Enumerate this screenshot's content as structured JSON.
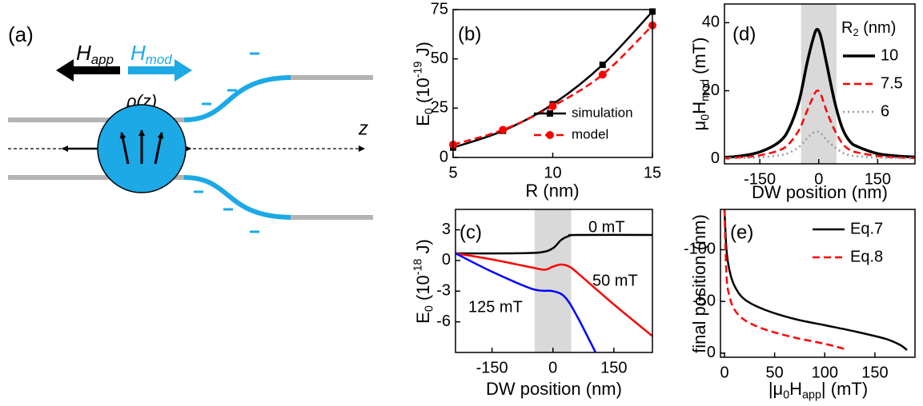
{
  "diagram": {
    "label": "(a)",
    "h_app": [
      {
        "text": "H"
      },
      {
        "text": "app",
        "shift": "sub"
      }
    ],
    "h_mod": [
      {
        "text": "H"
      },
      {
        "text": "mod",
        "shift": "sub"
      }
    ],
    "rho": "ρ(z)",
    "z": "z"
  },
  "chart_data": [
    {
      "type": "line",
      "panel": "(b)",
      "xlabel": "R (nm)",
      "ylabel": [
        {
          "text": "E"
        },
        {
          "text": "0",
          "shift": "sub"
        },
        {
          "text": " (10"
        },
        {
          "text": "-19",
          "shift": "super"
        },
        {
          "text": " J)"
        }
      ],
      "xlim": [
        5,
        15
      ],
      "ylim": [
        0,
        75
      ],
      "xticks": [
        5,
        10,
        15
      ],
      "yticks": [
        0,
        25,
        50,
        75
      ],
      "legend": "lower right",
      "series": [
        {
          "name": "simulation",
          "color": "#000000",
          "style": "solid",
          "marker": "square",
          "x": [
            5,
            7.5,
            10,
            12.5,
            15
          ],
          "values": [
            5,
            13.5,
            27,
            47,
            74
          ]
        },
        {
          "name": "model",
          "color": "#ff0000",
          "style": "dashed",
          "marker": "circle",
          "x": [
            5,
            7.5,
            10,
            12.5,
            15
          ],
          "values": [
            6.5,
            14,
            26,
            42,
            67
          ]
        }
      ]
    },
    {
      "type": "line",
      "panel": "(c)",
      "xlabel": "DW position (nm)",
      "ylabel": [
        {
          "text": "E"
        },
        {
          "text": "0",
          "shift": "sub"
        },
        {
          "text": " (10"
        },
        {
          "text": "-18",
          "shift": "super"
        },
        {
          "text": " J)"
        }
      ],
      "xlim": [
        -240,
        245
      ],
      "ylim": [
        -9,
        5
      ],
      "xticks": [
        -150,
        0,
        150
      ],
      "yticks": [
        3,
        0,
        -3,
        -6
      ],
      "legend": "inline",
      "shaded_region": [
        -45,
        45
      ],
      "series": [
        {
          "name": "0 mT",
          "color": "#000000",
          "style": "solid",
          "x": [
            -240,
            -100,
            -30,
            0,
            20,
            40,
            60,
            245
          ],
          "values": [
            0.7,
            0.7,
            0.8,
            1.2,
            2.0,
            2.4,
            2.5,
            2.5
          ]
        },
        {
          "name": "50 mT",
          "color": "#ff0000",
          "style": "solid",
          "x": [
            -240,
            -150,
            -50,
            -20,
            0,
            20,
            40,
            60,
            150,
            245
          ],
          "values": [
            0.7,
            0.1,
            -0.7,
            -0.9,
            -0.6,
            -0.4,
            -0.6,
            -1.2,
            -4.3,
            -7.4
          ]
        },
        {
          "name": "125 mT",
          "color": "#0000ff",
          "style": "solid",
          "x": [
            -240,
            -150,
            -50,
            0,
            30,
            60,
            105
          ],
          "values": [
            0.7,
            -1.1,
            -2.8,
            -3.0,
            -3.6,
            -5.5,
            -9
          ]
        }
      ]
    },
    {
      "type": "line",
      "panel": "(d)",
      "xlabel": "DW position (nm)",
      "ylabel": [
        {
          "text": "μ"
        },
        {
          "text": "0",
          "shift": "sub"
        },
        {
          "text": "H"
        },
        {
          "text": "mod",
          "shift": "sub"
        },
        {
          "text": " (mT)"
        }
      ],
      "legend_title": [
        {
          "text": "R"
        },
        {
          "text": "2",
          "shift": "sub"
        },
        {
          "text": " (nm)"
        }
      ],
      "xlim": [
        -240,
        245
      ],
      "ylim": [
        -1.5,
        45.5
      ],
      "xticks": [
        -150,
        0,
        150
      ],
      "yticks": [
        0,
        20,
        40
      ],
      "legend": "upper right",
      "shaded_region": [
        -45,
        45
      ],
      "series": [
        {
          "name": "10",
          "color": "#000000",
          "style": "solid",
          "x": [
            -240,
            -200,
            -150,
            -100,
            -75,
            -50,
            -30,
            -15,
            -5,
            5,
            20,
            40,
            60,
            80,
            100,
            150,
            200,
            245
          ],
          "values": [
            0.4,
            0.8,
            2,
            5,
            9,
            17,
            28,
            35,
            38,
            36,
            28,
            17,
            9,
            5,
            3.5,
            1.5,
            0.8,
            0.5
          ]
        },
        {
          "name": "7.5",
          "color": "#ff0000",
          "style": "dashed",
          "x": [
            -240,
            -200,
            -150,
            -100,
            -75,
            -50,
            -30,
            -15,
            -5,
            5,
            20,
            40,
            60,
            80,
            100,
            150,
            200,
            245
          ],
          "values": [
            0.2,
            0.4,
            1,
            2.5,
            4.5,
            8.5,
            14,
            18,
            20,
            19,
            14,
            8.5,
            4.5,
            2.5,
            1.8,
            0.8,
            0.4,
            0.2
          ]
        },
        {
          "name": "6",
          "color": "#999999",
          "style": "dotted",
          "x": [
            -240,
            -200,
            -150,
            -100,
            -75,
            -50,
            -30,
            -15,
            -5,
            5,
            20,
            40,
            60,
            80,
            100,
            150,
            200,
            245
          ],
          "values": [
            0.1,
            0.2,
            0.4,
            1,
            1.8,
            3.5,
            6,
            7.5,
            8,
            7.5,
            5.5,
            3.5,
            1.8,
            1,
            0.7,
            0.3,
            0.2,
            0.1
          ]
        }
      ]
    },
    {
      "type": "line",
      "panel": "(e)",
      "xlabel": [
        {
          "text": "|μ"
        },
        {
          "text": "0",
          "shift": "sub"
        },
        {
          "text": "H"
        },
        {
          "text": "app",
          "shift": "sub"
        },
        {
          "text": "| (mT)"
        }
      ],
      "ylabel": "final position (nm)",
      "xlim": [
        -4,
        190
      ],
      "ylim": [
        4,
        -139
      ],
      "xticks": [
        0,
        50,
        100,
        150
      ],
      "yticks": [
        0,
        -50,
        -100
      ],
      "legend": "upper right",
      "series": [
        {
          "name": "Eq.7",
          "color": "#000000",
          "style": "solid",
          "x": [
            0,
            2,
            5,
            10,
            20,
            40,
            70,
            100,
            130,
            160,
            175,
            182
          ],
          "values": [
            -139,
            -100,
            -80,
            -65,
            -52,
            -42,
            -33,
            -27,
            -21,
            -14,
            -8,
            -3
          ]
        },
        {
          "name": "Eq.8",
          "color": "#ff0000",
          "style": "dashed",
          "x": [
            0,
            2,
            5,
            10,
            20,
            40,
            70,
            100,
            120
          ],
          "values": [
            -139,
            -75,
            -55,
            -42,
            -32,
            -23,
            -15,
            -9,
            -4
          ]
        }
      ]
    }
  ]
}
